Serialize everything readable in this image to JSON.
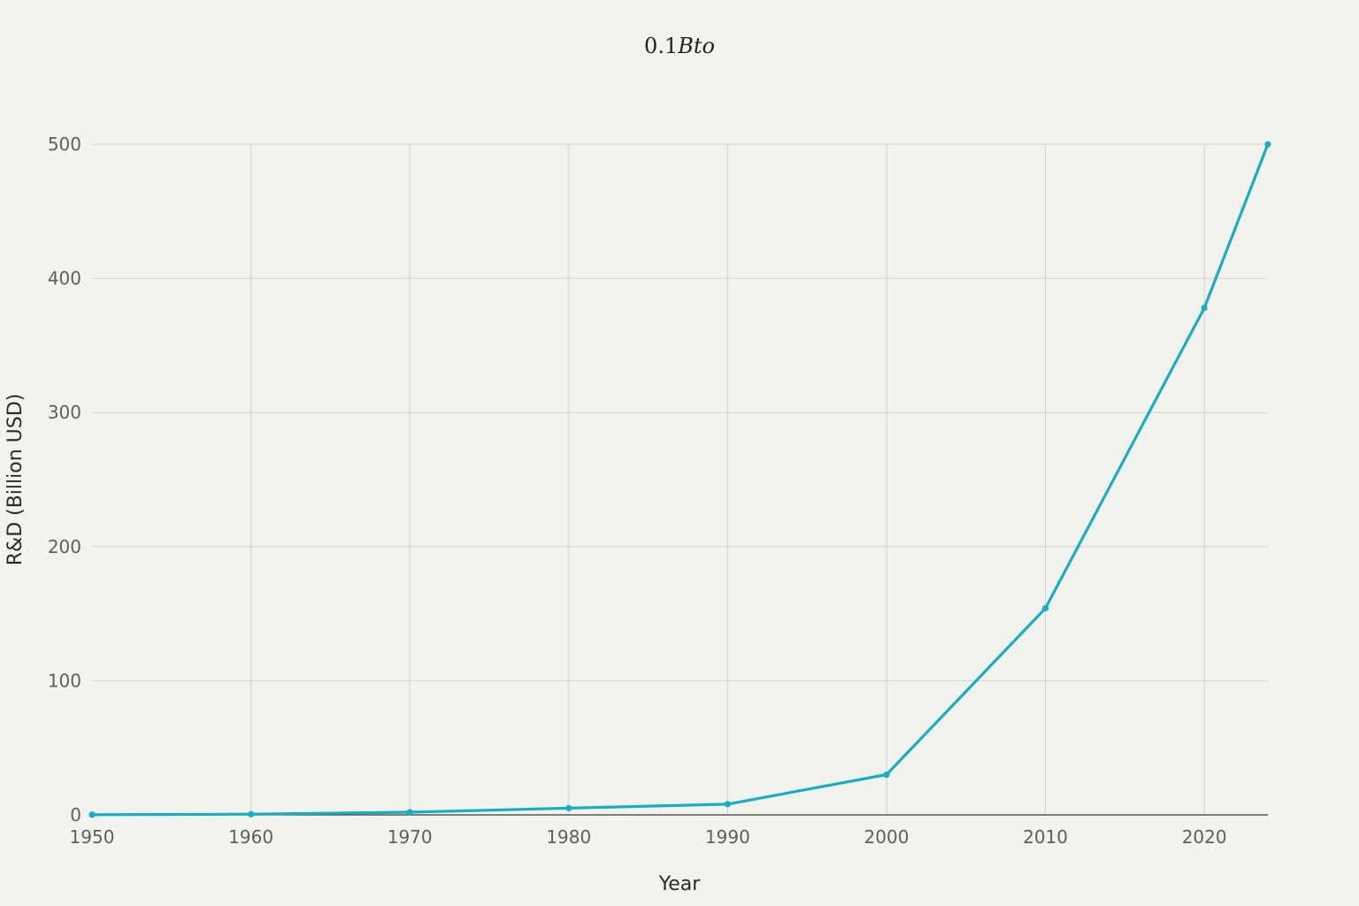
{
  "chart_data": {
    "type": "line",
    "title_prefix": "0.1",
    "title_italic": "Bto",
    "xlabel": "Year",
    "ylabel": "R&D (Billion USD)",
    "xlim": [
      1950,
      2024
    ],
    "ylim": [
      0,
      500
    ],
    "x_ticks": [
      1950,
      1960,
      1970,
      1980,
      1990,
      2000,
      2010,
      2020
    ],
    "y_ticks": [
      0,
      100,
      200,
      300,
      400,
      500
    ],
    "grid": true,
    "line_color": "#17aec3",
    "series": [
      {
        "x": [
          1950,
          1960,
          1970,
          1980,
          1990,
          2000,
          2010,
          2020,
          2024
        ],
        "y": [
          0.1,
          0.5,
          2,
          5,
          8,
          30,
          154,
          378,
          500
        ]
      }
    ]
  }
}
